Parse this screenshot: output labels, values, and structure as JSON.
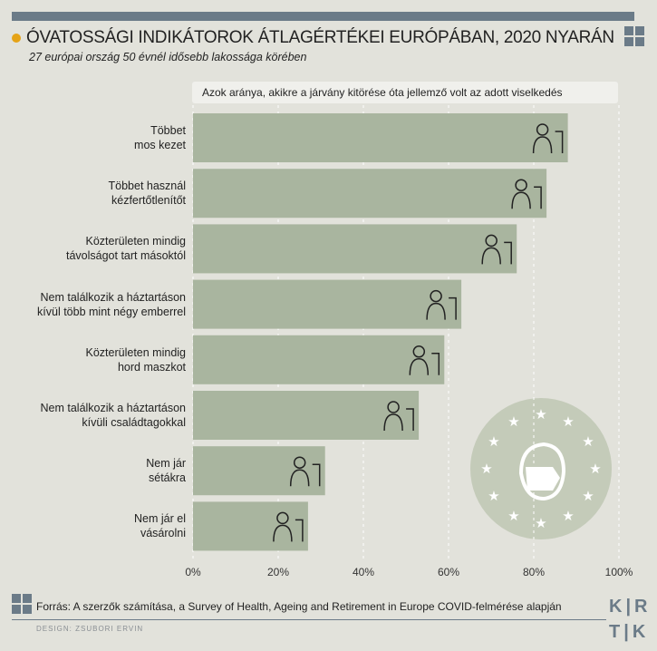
{
  "header": {
    "title": "ÓVATOSSÁGI INDIKÁTOROK ÁTLAGÉRTÉKEI EURÓPÁBAN, 2020 NYARÁN",
    "subtitle": "27 európai ország 50 évnél idősebb lakossága körében",
    "accent_color": "#e5a317"
  },
  "chart_data": {
    "type": "bar",
    "orientation": "horizontal",
    "title": "Azok aránya, akikre a járvány kitörése óta jellemző volt az adott viselkedés",
    "categories": [
      "Többet\nmos kezet",
      "Többet használ\nkézfertőtlenítőt",
      "Közterületen mindig\ntávolságot tart másoktól",
      "Nem találkozik a háztartáson\nkívül több mint négy emberrel",
      "Közterületen mindig\nhord maszkot",
      "Nem találkozik a háztartáson\nkívüli családtagokkal",
      "Nem jár\nsétákra",
      "Nem jár el\nvásárolni"
    ],
    "values": [
      88,
      83,
      76,
      63,
      59,
      53,
      31,
      27
    ],
    "icons": [
      "handwashing-icon",
      "hand-sanitizer-icon",
      "social-distance-icon",
      "group-crossed-icon",
      "mask-person-icon",
      "family-meeting-crossed-icon",
      "walking-crossed-icon",
      "shopping-crossed-icon"
    ],
    "xlim": [
      0,
      100
    ],
    "xticks": [
      "0%",
      "20%",
      "40%",
      "60%",
      "80%",
      "100%"
    ],
    "grid": true,
    "bar_color": "#a9b59f"
  },
  "footer": {
    "source": "Forrás: A szerzők számítása, a Survey of Health, Ageing and Retirement in Europe COVID-felmérése alapján",
    "design": "DESIGN: ZSUBORI ERVIN",
    "logo": "KRTK"
  }
}
